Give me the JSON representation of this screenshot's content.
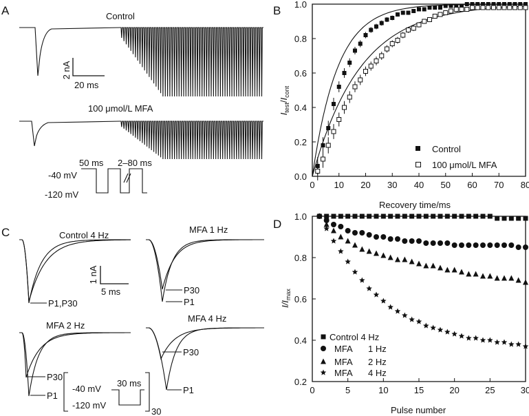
{
  "panels": {
    "A": {
      "label": "A",
      "control_label": "Control",
      "mfa_label": "100 μmol/L MFA",
      "scale_y": "2 nA",
      "scale_x": "20 ms",
      "protocol": {
        "p1": "50 ms",
        "p2": "2–80 ms",
        "v_hold": "-40 mV",
        "v_test": "-120 mV"
      }
    },
    "B": {
      "label": "B"
    },
    "C": {
      "label": "C",
      "titles": [
        "Control 4 Hz",
        "MFA 1 Hz",
        "MFA 2 Hz",
        "MFA 4 Hz"
      ],
      "scale_y": "1 nA",
      "scale_x": "5 ms",
      "p1": "P1",
      "p30": "P30",
      "p1p30": "P1,P30",
      "protocol": {
        "dur": "30 ms",
        "v_hold": "-40 mV",
        "v_test": "-120 mV",
        "repeat": "30"
      }
    },
    "D": {
      "label": "D"
    }
  },
  "chart_data": [
    {
      "panel": "B",
      "type": "scatter",
      "xlabel": "Recovery time/ms",
      "ylabel": "Itest/Icont",
      "ylabel_main": "I",
      "ylabel_sub1": "test",
      "ylabel_slash": "/",
      "ylabel_sub2": "cont",
      "xlim": [
        0,
        80
      ],
      "ylim": [
        0,
        1.0
      ],
      "xticks": [
        "0",
        "10",
        "20",
        "30",
        "40",
        "50",
        "60",
        "70",
        "80"
      ],
      "yticks": [
        "0.0",
        "0.2",
        "0.4",
        "0.6",
        "0.8",
        "1.0"
      ],
      "legend": "inside-right",
      "series": [
        {
          "name": "Control",
          "marker": "filled-square",
          "x": [
            2,
            4,
            6,
            8,
            10,
            12,
            14,
            16,
            18,
            20,
            22,
            24,
            26,
            28,
            30,
            32,
            34,
            36,
            38,
            40,
            42,
            44,
            46,
            48,
            50,
            52,
            54,
            56,
            58,
            60,
            62,
            64,
            66,
            68,
            70,
            72,
            74,
            76,
            78,
            80
          ],
          "y": [
            0.06,
            0.18,
            0.28,
            0.42,
            0.52,
            0.6,
            0.66,
            0.73,
            0.77,
            0.82,
            0.85,
            0.87,
            0.89,
            0.91,
            0.92,
            0.94,
            0.95,
            0.95,
            0.96,
            0.97,
            0.97,
            0.98,
            0.98,
            0.98,
            0.99,
            0.99,
            0.99,
            0.99,
            1.0,
            1.0,
            1.0,
            1.0,
            1.0,
            1.0,
            1.0,
            1.0,
            1.0,
            1.0,
            1.0,
            1.0
          ]
        },
        {
          "name": "100 μmol/L MFA",
          "marker": "open-square",
          "x": [
            2,
            4,
            6,
            8,
            10,
            12,
            14,
            16,
            18,
            20,
            22,
            24,
            26,
            28,
            30,
            32,
            34,
            36,
            38,
            40,
            42,
            44,
            46,
            48,
            50,
            52,
            54,
            56,
            58,
            60,
            62,
            64,
            66,
            68,
            70,
            72,
            74,
            76,
            78,
            80
          ],
          "y": [
            0.03,
            0.1,
            0.18,
            0.26,
            0.33,
            0.4,
            0.46,
            0.52,
            0.56,
            0.61,
            0.64,
            0.67,
            0.7,
            0.74,
            0.77,
            0.79,
            0.82,
            0.85,
            0.86,
            0.88,
            0.9,
            0.91,
            0.93,
            0.94,
            0.95,
            0.96,
            0.97,
            0.97,
            0.97,
            0.98,
            0.98,
            0.98,
            0.98,
            0.98,
            0.98,
            0.98,
            0.98,
            0.98,
            0.98,
            0.98
          ]
        }
      ]
    },
    {
      "panel": "D",
      "type": "scatter",
      "xlabel": "Pulse number",
      "ylabel": "I/Imax",
      "ylabel_main": "I/I",
      "ylabel_sub": "max",
      "xlim": [
        0,
        30
      ],
      "ylim": [
        0.2,
        1.0
      ],
      "xticks": [
        "0",
        "5",
        "10",
        "15",
        "20",
        "25",
        "30"
      ],
      "yticks": [
        "0.2",
        "0.4",
        "0.6",
        "0.8",
        "1.0"
      ],
      "legend": "bottom-left",
      "series": [
        {
          "name": "Control 4 Hz",
          "label_a": "Control 4 Hz",
          "label_b": "",
          "marker": "square",
          "x": [
            1,
            2,
            3,
            4,
            5,
            6,
            7,
            8,
            9,
            10,
            11,
            12,
            13,
            14,
            15,
            16,
            17,
            18,
            19,
            20,
            21,
            22,
            23,
            24,
            25,
            26,
            27,
            28,
            29,
            30
          ],
          "y": [
            1.0,
            1.0,
            1.0,
            1.0,
            1.0,
            1.0,
            1.0,
            1.0,
            1.0,
            1.0,
            1.0,
            1.0,
            1.0,
            1.0,
            1.0,
            1.0,
            1.0,
            1.0,
            1.0,
            1.0,
            1.0,
            1.0,
            1.0,
            1.0,
            1.0,
            0.99,
            0.99,
            0.99,
            0.99,
            0.99
          ]
        },
        {
          "name": "MFA 1 Hz",
          "label_a": "MFA",
          "label_b": "1 Hz",
          "marker": "circle",
          "x": [
            1,
            2,
            3,
            4,
            5,
            6,
            7,
            8,
            9,
            10,
            11,
            12,
            13,
            14,
            15,
            16,
            17,
            18,
            19,
            20,
            21,
            22,
            23,
            24,
            25,
            26,
            27,
            28,
            29,
            30
          ],
          "y": [
            1.0,
            0.98,
            0.96,
            0.95,
            0.93,
            0.92,
            0.92,
            0.91,
            0.9,
            0.9,
            0.89,
            0.89,
            0.88,
            0.88,
            0.88,
            0.87,
            0.87,
            0.87,
            0.87,
            0.86,
            0.86,
            0.86,
            0.86,
            0.86,
            0.86,
            0.86,
            0.86,
            0.86,
            0.85,
            0.85
          ]
        },
        {
          "name": "MFA 2 Hz",
          "label_a": "MFA",
          "label_b": "2 Hz",
          "marker": "triangle",
          "x": [
            1,
            2,
            3,
            4,
            5,
            6,
            7,
            8,
            9,
            10,
            11,
            12,
            13,
            14,
            15,
            16,
            17,
            18,
            19,
            20,
            21,
            22,
            23,
            24,
            25,
            26,
            27,
            28,
            29,
            30
          ],
          "y": [
            1.0,
            0.96,
            0.93,
            0.9,
            0.88,
            0.86,
            0.84,
            0.83,
            0.82,
            0.81,
            0.8,
            0.79,
            0.79,
            0.78,
            0.77,
            0.76,
            0.76,
            0.75,
            0.74,
            0.74,
            0.73,
            0.72,
            0.72,
            0.71,
            0.71,
            0.7,
            0.7,
            0.7,
            0.69,
            0.68
          ]
        },
        {
          "name": "MFA 4 Hz",
          "label_a": "MFA",
          "label_b": "4 Hz",
          "marker": "star",
          "x": [
            1,
            2,
            3,
            4,
            5,
            6,
            7,
            8,
            9,
            10,
            11,
            12,
            13,
            14,
            15,
            16,
            17,
            18,
            19,
            20,
            21,
            22,
            23,
            24,
            25,
            26,
            27,
            28,
            29,
            30
          ],
          "y": [
            1.0,
            0.94,
            0.88,
            0.83,
            0.78,
            0.73,
            0.69,
            0.65,
            0.62,
            0.59,
            0.56,
            0.54,
            0.52,
            0.5,
            0.49,
            0.47,
            0.46,
            0.45,
            0.44,
            0.43,
            0.42,
            0.41,
            0.41,
            0.4,
            0.4,
            0.39,
            0.39,
            0.38,
            0.38,
            0.37
          ]
        }
      ]
    }
  ]
}
